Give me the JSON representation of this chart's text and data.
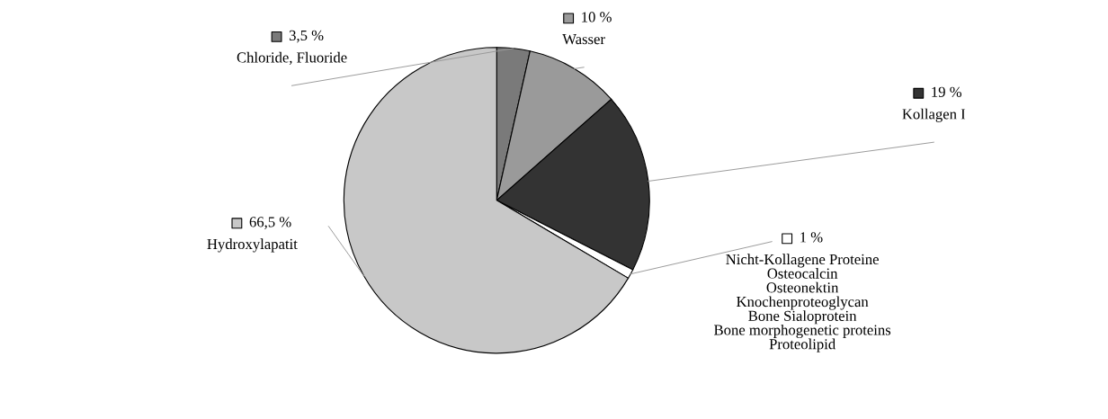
{
  "chart_data": {
    "type": "pie",
    "categories": [
      "Chloride, Fluoride",
      "Wasser",
      "Kollagen I",
      "Nicht-Kollagene Proteine\nOsteocalcin\nOsteonektin\nKnochenproteoglycan\nBone Sialoprotein\nBone morphogenetic proteins\nProteolipid",
      "Hydroxylapatit"
    ],
    "values": [
      3.5,
      10,
      19,
      1,
      66.5
    ],
    "value_labels": [
      "3,5 %",
      "10 %",
      "19 %",
      "1 %",
      "66,5 %"
    ],
    "colors": [
      "#7a7a7a",
      "#9a9a9a",
      "#333333",
      "#ffffff",
      "#c8c8c8"
    ],
    "legend": "right"
  }
}
